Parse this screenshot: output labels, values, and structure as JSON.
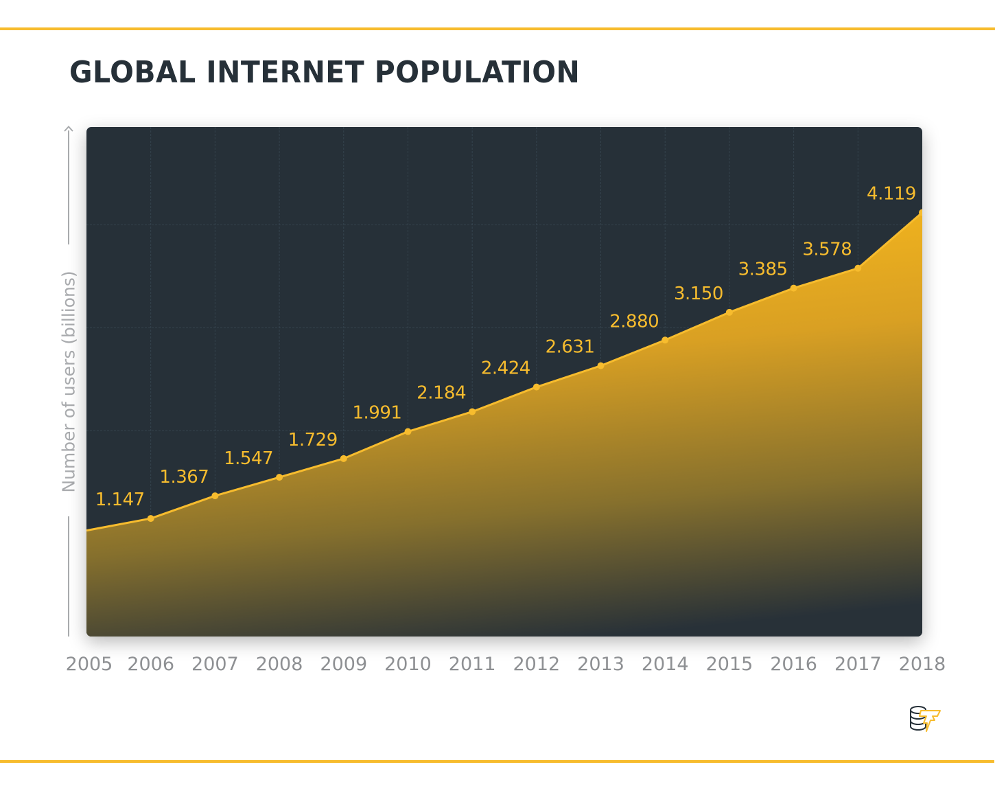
{
  "title": "GLOBAL INTERNET POPULATION",
  "colors": {
    "accent": "#F7BC2E",
    "line": "#F7BC2E",
    "chart_bg": "#263038",
    "title": "#263038",
    "axis_text": "#8e9093",
    "axis_label": "#a9abae"
  },
  "logo": {
    "icon": "coins-lightning-logo-icon"
  },
  "chart_data": {
    "type": "area",
    "title": "GLOBAL INTERNET POPULATION",
    "xlabel": "",
    "ylabel": "Number of users (billions)",
    "categories": [
      "2005",
      "2006",
      "2007",
      "2008",
      "2009",
      "2010",
      "2011",
      "2012",
      "2013",
      "2014",
      "2015",
      "2016",
      "2017",
      "2018"
    ],
    "values": [
      1.03,
      1.147,
      1.367,
      1.547,
      1.729,
      1.991,
      2.184,
      2.424,
      2.631,
      2.88,
      3.15,
      3.385,
      3.578,
      4.119
    ],
    "data_labels": [
      null,
      "1.147",
      "1.367",
      "1.547",
      "1.729",
      "1.991",
      "2.184",
      "2.424",
      "2.631",
      "2.880",
      "3.150",
      "3.385",
      "3.578",
      "4.119"
    ],
    "ylim": [
      0,
      4.95
    ],
    "grid": true,
    "gridline_step": 1,
    "legend": "none"
  }
}
